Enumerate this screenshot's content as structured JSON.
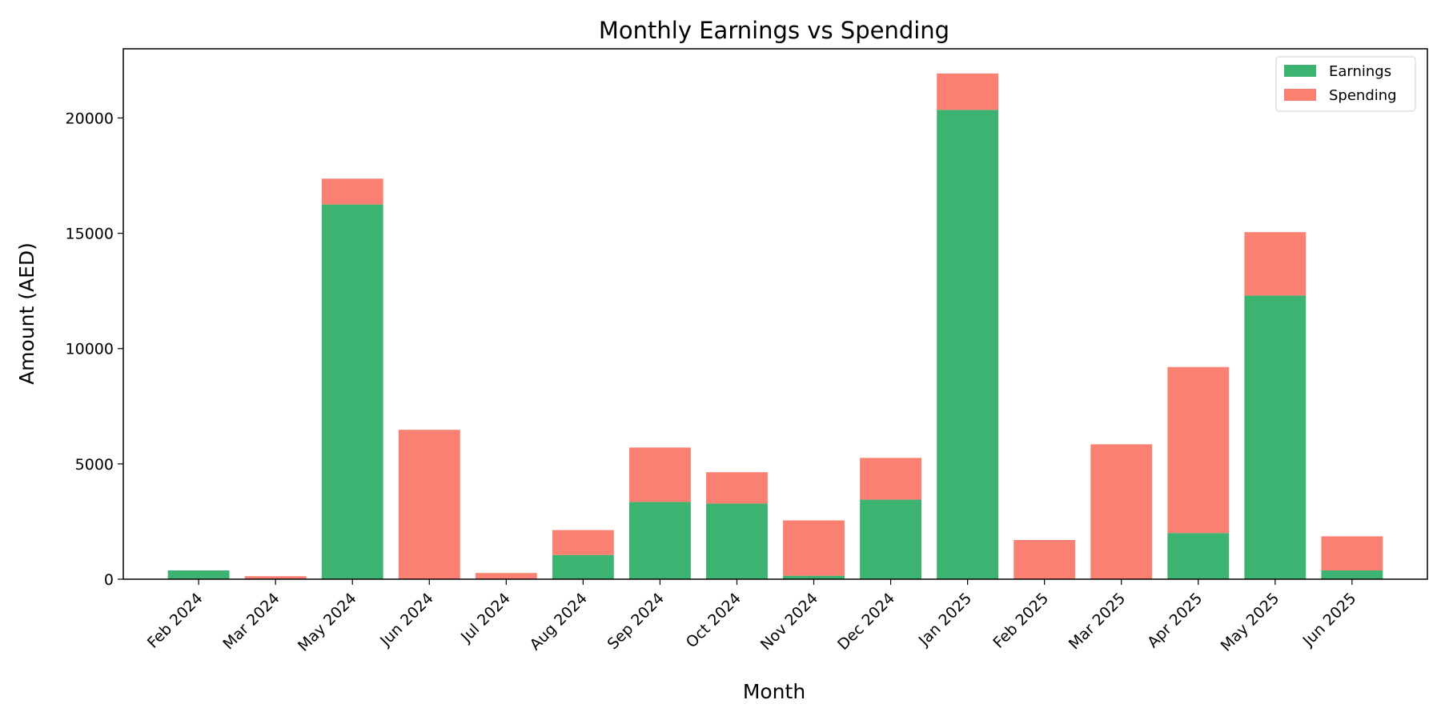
{
  "chart_data": {
    "type": "bar",
    "stacked": true,
    "title": "Monthly Earnings vs Spending",
    "xlabel": "Month",
    "ylabel": "Amount (AED)",
    "categories": [
      "Feb 2024",
      "Mar 2024",
      "May 2024",
      "Jun 2024",
      "Jul 2024",
      "Aug 2024",
      "Sep 2024",
      "Oct 2024",
      "Nov 2024",
      "Dec 2024",
      "Jan 2025",
      "Feb 2025",
      "Mar 2025",
      "Apr 2025",
      "May 2025",
      "Jun 2025"
    ],
    "series": [
      {
        "name": "Earnings",
        "color": "#3cb371",
        "values": [
          380,
          0,
          16250,
          0,
          0,
          1050,
          3350,
          3280,
          150,
          3450,
          20350,
          0,
          0,
          2000,
          12300,
          380
        ]
      },
      {
        "name": "Spending",
        "color": "#fa8072",
        "values": [
          0,
          130,
          1120,
          6480,
          270,
          1080,
          2360,
          1360,
          2400,
          1810,
          1580,
          1700,
          5850,
          7200,
          2750,
          1480
        ]
      }
    ],
    "ylim": [
      0,
      23000
    ],
    "yticks": [
      0,
      5000,
      10000,
      15000,
      20000
    ],
    "grid": false,
    "legend_position": "top-right"
  }
}
